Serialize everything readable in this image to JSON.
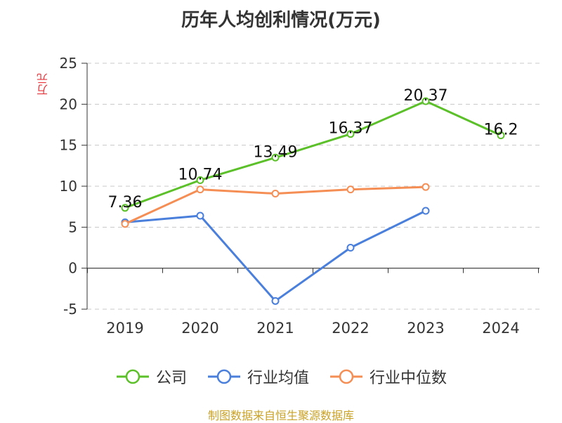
{
  "chart_data": {
    "type": "line",
    "title": "历年人均创利情况(万元)",
    "ylabel": "万元",
    "xlabel": "",
    "categories": [
      "2019",
      "2020",
      "2021",
      "2022",
      "2023",
      "2024"
    ],
    "ylim": [
      -5,
      25
    ],
    "yticks": [
      25,
      20,
      15,
      10,
      5,
      0,
      -5
    ],
    "grid": true,
    "legend_position": "bottom",
    "series": [
      {
        "name": "公司",
        "color": "#5cc02a",
        "values": [
          7.36,
          10.74,
          13.49,
          16.37,
          20.37,
          16.2
        ],
        "labels": [
          "7.36",
          "10.74",
          "13.49",
          "16.37",
          "20.37",
          "16.2"
        ]
      },
      {
        "name": "行业均值",
        "color": "#4a7fdc",
        "values": [
          5.6,
          6.4,
          -4.0,
          2.5,
          7.0,
          null
        ]
      },
      {
        "name": "行业中位数",
        "color": "#f58e55",
        "values": [
          5.4,
          9.6,
          9.1,
          9.6,
          9.9,
          null
        ]
      }
    ]
  },
  "source": "制图数据来自恒生聚源数据库"
}
